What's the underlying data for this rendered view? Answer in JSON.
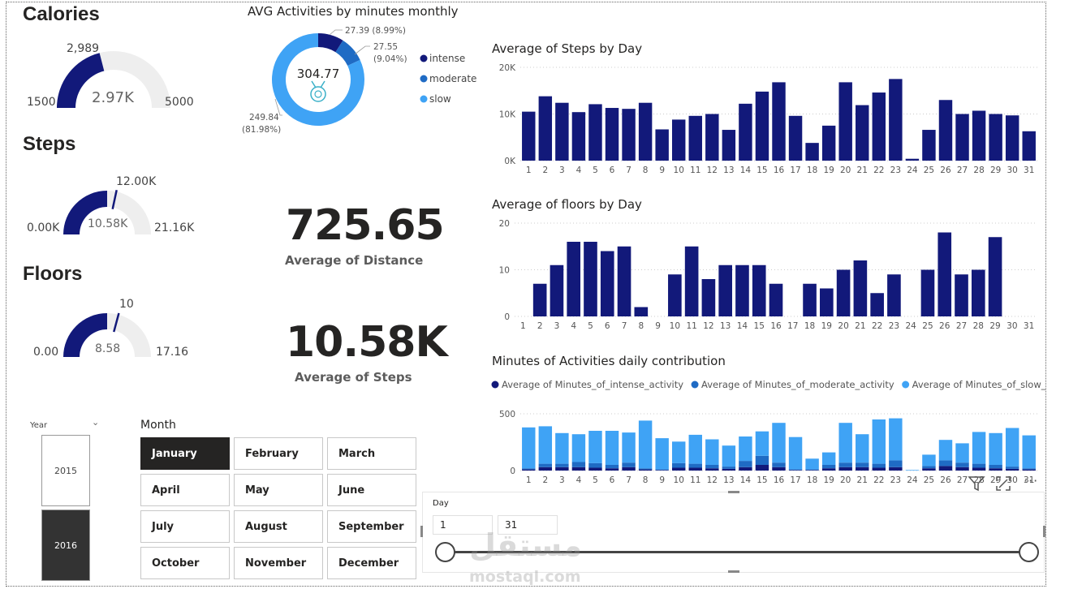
{
  "colors": {
    "dark": "#12197a",
    "mid": "#1f6bc4",
    "light": "#3fa3f5",
    "gauge_bg": "#eeeeee",
    "text": "#252423"
  },
  "calories": {
    "title": "Calories",
    "target": "2,989",
    "value": "2.97K",
    "min": "1500",
    "max": "5000",
    "fill_fraction": 0.42
  },
  "steps_gauge": {
    "title": "Steps",
    "target": "12.00K",
    "value": "10.58K",
    "min": "0.00K",
    "max": "21.16K",
    "fill_fraction": 0.5,
    "target_fraction": 0.567
  },
  "floors_gauge": {
    "title": "Floors",
    "target": "10",
    "value": "8.58",
    "min": "0.00",
    "max": "17.16",
    "fill_fraction": 0.5,
    "target_fraction": 0.583
  },
  "donut": {
    "title": "AVG Activities by minutes monthly",
    "center_value": "304.77",
    "slices": [
      {
        "name": "intense",
        "value": 27.39,
        "label": "27.39 (8.99%)",
        "color": "#12197a"
      },
      {
        "name": "moderate",
        "value": 27.55,
        "label_line1": "27.55",
        "label_line2": "(9.04%)",
        "color": "#1f6bc4"
      },
      {
        "name": "slow",
        "value": 249.84,
        "label_line1": "249.84",
        "label_line2": "(81.98%)",
        "color": "#3fa3f5"
      }
    ],
    "legend": [
      "intense",
      "moderate",
      "slow"
    ]
  },
  "distance_card": {
    "value": "725.65",
    "caption": "Average of Distance"
  },
  "steps_card": {
    "value": "10.58K",
    "caption": "Average of Steps"
  },
  "year_slicer": {
    "title": "Year",
    "options": [
      "2015",
      "2016"
    ],
    "selected": "2016"
  },
  "month_slicer": {
    "title": "Month",
    "options": [
      "January",
      "February",
      "March",
      "April",
      "May",
      "June",
      "July",
      "August",
      "September",
      "October",
      "November",
      "December"
    ],
    "selected": "January"
  },
  "day_slicer": {
    "title": "Day",
    "from": "1",
    "to": "31"
  },
  "watermark": {
    "arabic": "مستقل",
    "latin": "mostaql.com"
  },
  "chart_data": [
    {
      "type": "bar",
      "title": "Average of Steps by Day",
      "categories": [
        "1",
        "2",
        "3",
        "4",
        "5",
        "6",
        "7",
        "8",
        "9",
        "10",
        "11",
        "12",
        "13",
        "14",
        "15",
        "16",
        "17",
        "18",
        "19",
        "20",
        "21",
        "22",
        "23",
        "24",
        "25",
        "26",
        "27",
        "28",
        "29",
        "30",
        "31"
      ],
      "values": [
        10500,
        13800,
        12400,
        10400,
        12100,
        11300,
        11100,
        12400,
        6700,
        8800,
        9600,
        10000,
        6600,
        12200,
        14800,
        16800,
        9600,
        3800,
        7500,
        16800,
        11900,
        14600,
        17500,
        400,
        6600,
        13000,
        10000,
        10700,
        10000,
        9700,
        6300
      ],
      "yticks": [
        "0K",
        "10K",
        "20K"
      ],
      "ylim": [
        0,
        20000
      ],
      "color": "#12197a"
    },
    {
      "type": "bar",
      "title": "Average of floors by Day",
      "categories": [
        "1",
        "2",
        "3",
        "4",
        "5",
        "6",
        "7",
        "8",
        "9",
        "10",
        "11",
        "12",
        "13",
        "14",
        "15",
        "16",
        "17",
        "18",
        "19",
        "20",
        "21",
        "22",
        "23",
        "24",
        "25",
        "26",
        "27",
        "28",
        "29",
        "30",
        "31"
      ],
      "values": [
        0,
        7,
        11,
        16,
        16,
        14,
        15,
        2,
        0,
        9,
        15,
        8,
        11,
        11,
        11,
        7,
        0,
        7,
        6,
        10,
        12,
        5,
        9,
        0,
        10,
        18,
        9,
        10,
        17,
        0,
        0
      ],
      "yticks": [
        "0",
        "10",
        "20"
      ],
      "ylim": [
        0,
        20
      ],
      "color": "#12197a"
    },
    {
      "type": "bar",
      "title": "Minutes of Activities daily contribution",
      "stacked": true,
      "categories": [
        "1",
        "2",
        "3",
        "4",
        "5",
        "6",
        "7",
        "8",
        "9",
        "10",
        "11",
        "12",
        "13",
        "14",
        "15",
        "16",
        "17",
        "18",
        "19",
        "20",
        "21",
        "22",
        "23",
        "24",
        "25",
        "26",
        "27",
        "28",
        "29",
        "30",
        "31"
      ],
      "series": [
        {
          "name": "Average of Minutes_of_intense_activity",
          "color": "#12197a",
          "values": [
            10,
            30,
            30,
            30,
            25,
            20,
            30,
            10,
            5,
            25,
            25,
            20,
            15,
            30,
            50,
            30,
            5,
            5,
            20,
            30,
            30,
            25,
            30,
            0,
            20,
            40,
            30,
            25,
            20,
            15,
            10
          ]
        },
        {
          "name": "Average of Minutes_of_moderate_activity",
          "color": "#1f6bc4",
          "values": [
            10,
            30,
            30,
            45,
            40,
            30,
            40,
            10,
            5,
            40,
            35,
            30,
            20,
            55,
            80,
            40,
            5,
            5,
            30,
            40,
            40,
            35,
            60,
            0,
            20,
            50,
            40,
            35,
            30,
            20,
            10
          ]
        },
        {
          "name": "Average of Minutes_of_slow_activity",
          "color": "#3fa3f5",
          "values": [
            360,
            330,
            270,
            245,
            285,
            300,
            265,
            420,
            275,
            190,
            255,
            225,
            185,
            215,
            215,
            350,
            285,
            95,
            110,
            350,
            250,
            390,
            370,
            5,
            100,
            180,
            170,
            280,
            280,
            340,
            290
          ]
        }
      ],
      "yticks": [
        "0",
        "500"
      ],
      "ylim": [
        0,
        500
      ]
    }
  ]
}
